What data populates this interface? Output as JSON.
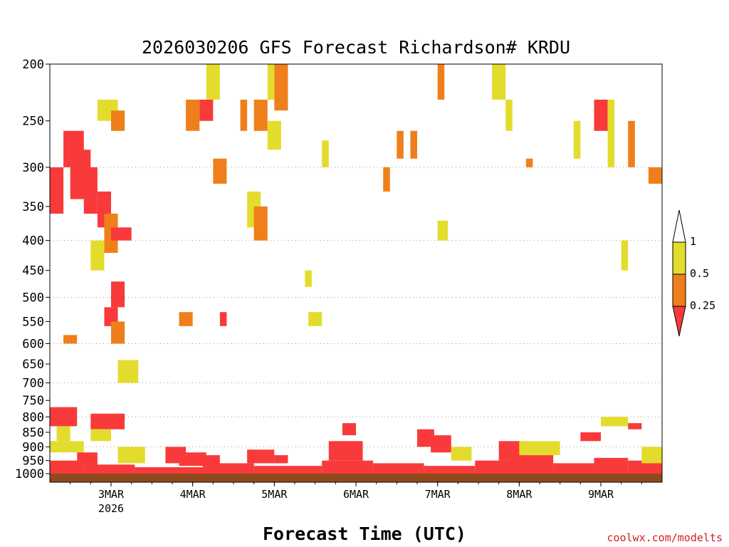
{
  "chart_data": {
    "type": "heatmap",
    "title": "2026030206 GFS Forecast Richardson# KRDU",
    "xlabel": "Forecast Time (UTC)",
    "credit": "coolwx.com/modelts",
    "y_axis": {
      "scale": "log",
      "range": [
        1000,
        200
      ],
      "ticks": [
        "200",
        "250",
        "300",
        "350",
        "400",
        "450",
        "500",
        "550",
        "600",
        "650",
        "700",
        "750",
        "800",
        "850",
        "900",
        "950",
        "1000"
      ],
      "gridlines": [
        300,
        400,
        500,
        600,
        700,
        800,
        900
      ]
    },
    "x_axis": {
      "range_hours": [
        0,
        180
      ],
      "ticks": [
        {
          "label": "3MAR",
          "sub": "2026",
          "hour": 18
        },
        {
          "label": "4MAR",
          "sub": "",
          "hour": 42
        },
        {
          "label": "5MAR",
          "sub": "",
          "hour": 66
        },
        {
          "label": "6MAR",
          "sub": "",
          "hour": 90
        },
        {
          "label": "7MAR",
          "sub": "",
          "hour": 114
        },
        {
          "label": "8MAR",
          "sub": "",
          "hour": 138
        },
        {
          "label": "9MAR",
          "sub": "",
          "hour": 162
        }
      ]
    },
    "legend": {
      "placement": "right",
      "labels": [
        "1",
        "0.5",
        "0.25"
      ],
      "colors": {
        "yellow": "#e3dc2d",
        "orange": "#ef7f1a",
        "red": "#f83a3a",
        "ground": "#8e4a1d"
      }
    },
    "categories_meaning": [
      "Ri < 0.25 (red)",
      "0.25-0.5 (orange)",
      "0.5-1 (yellow)"
    ],
    "cells": [
      [
        0,
        10,
        950,
        1000,
        "r"
      ],
      [
        10,
        25,
        965,
        1000,
        "r"
      ],
      [
        25,
        45,
        975,
        1000,
        "r"
      ],
      [
        45,
        60,
        960,
        1000,
        "r"
      ],
      [
        60,
        80,
        970,
        1000,
        "r"
      ],
      [
        80,
        95,
        950,
        1000,
        "r"
      ],
      [
        95,
        110,
        960,
        1000,
        "r"
      ],
      [
        110,
        125,
        970,
        1000,
        "r"
      ],
      [
        125,
        135,
        950,
        1000,
        "r"
      ],
      [
        135,
        148,
        930,
        1000,
        "r"
      ],
      [
        148,
        160,
        960,
        1000,
        "r"
      ],
      [
        160,
        170,
        940,
        1000,
        "r"
      ],
      [
        170,
        180,
        950,
        1000,
        "r"
      ],
      [
        0,
        8,
        770,
        830,
        "r"
      ],
      [
        2,
        6,
        830,
        880,
        "y"
      ],
      [
        12,
        22,
        790,
        840,
        "r"
      ],
      [
        12,
        18,
        840,
        880,
        "y"
      ],
      [
        0,
        10,
        880,
        920,
        "y"
      ],
      [
        8,
        14,
        920,
        980,
        "r"
      ],
      [
        20,
        28,
        900,
        960,
        "y"
      ],
      [
        34,
        40,
        900,
        960,
        "r"
      ],
      [
        38,
        46,
        920,
        970,
        "r"
      ],
      [
        44,
        50,
        930,
        970,
        "r"
      ],
      [
        58,
        66,
        910,
        960,
        "r"
      ],
      [
        66,
        70,
        930,
        960,
        "r"
      ],
      [
        82,
        92,
        880,
        950,
        "r"
      ],
      [
        86,
        90,
        820,
        860,
        "r"
      ],
      [
        108,
        113,
        840,
        900,
        "r"
      ],
      [
        112,
        118,
        860,
        920,
        "r"
      ],
      [
        118,
        124,
        900,
        950,
        "y"
      ],
      [
        132,
        140,
        880,
        950,
        "r"
      ],
      [
        138,
        150,
        880,
        930,
        "y"
      ],
      [
        156,
        162,
        850,
        880,
        "r"
      ],
      [
        162,
        170,
        800,
        830,
        "y"
      ],
      [
        174,
        180,
        900,
        960,
        "y"
      ],
      [
        170,
        174,
        820,
        840,
        "r"
      ],
      [
        0,
        4,
        300,
        360,
        "r"
      ],
      [
        4,
        10,
        260,
        300,
        "r"
      ],
      [
        6,
        12,
        280,
        340,
        "r"
      ],
      [
        10,
        14,
        300,
        360,
        "r"
      ],
      [
        14,
        18,
        330,
        380,
        "r"
      ],
      [
        16,
        20,
        360,
        420,
        "o"
      ],
      [
        18,
        24,
        380,
        400,
        "r"
      ],
      [
        14,
        20,
        230,
        250,
        "y"
      ],
      [
        18,
        22,
        240,
        260,
        "o"
      ],
      [
        12,
        16,
        400,
        450,
        "y"
      ],
      [
        18,
        22,
        470,
        520,
        "r"
      ],
      [
        16,
        20,
        520,
        560,
        "r"
      ],
      [
        18,
        22,
        550,
        600,
        "o"
      ],
      [
        4,
        8,
        580,
        600,
        "o"
      ],
      [
        20,
        26,
        640,
        700,
        "y"
      ],
      [
        40,
        44,
        230,
        260,
        "o"
      ],
      [
        44,
        48,
        230,
        250,
        "r"
      ],
      [
        46,
        50,
        200,
        230,
        "y"
      ],
      [
        48,
        52,
        290,
        320,
        "o"
      ],
      [
        56,
        58,
        230,
        260,
        "o"
      ],
      [
        60,
        64,
        230,
        260,
        "o"
      ],
      [
        64,
        66,
        200,
        230,
        "y"
      ],
      [
        66,
        70,
        200,
        240,
        "o"
      ],
      [
        64,
        68,
        250,
        280,
        "y"
      ],
      [
        58,
        62,
        330,
        380,
        "y"
      ],
      [
        60,
        64,
        350,
        400,
        "o"
      ],
      [
        80,
        82,
        270,
        300,
        "y"
      ],
      [
        102,
        104,
        260,
        290,
        "o"
      ],
      [
        106,
        108,
        260,
        290,
        "o"
      ],
      [
        98,
        100,
        300,
        330,
        "o"
      ],
      [
        114,
        116,
        200,
        230,
        "o"
      ],
      [
        114,
        117,
        370,
        400,
        "y"
      ],
      [
        130,
        134,
        200,
        230,
        "y"
      ],
      [
        134,
        136,
        230,
        260,
        "y"
      ],
      [
        140,
        142,
        290,
        300,
        "o"
      ],
      [
        154,
        156,
        250,
        290,
        "y"
      ],
      [
        160,
        164,
        230,
        260,
        "r"
      ],
      [
        164,
        166,
        230,
        300,
        "y"
      ],
      [
        170,
        172,
        250,
        300,
        "o"
      ],
      [
        176,
        180,
        300,
        320,
        "o"
      ],
      [
        168,
        170,
        400,
        450,
        "y"
      ],
      [
        75,
        77,
        450,
        480,
        "y"
      ],
      [
        76,
        80,
        530,
        560,
        "y"
      ],
      [
        38,
        42,
        530,
        560,
        "o"
      ],
      [
        50,
        52,
        530,
        560,
        "r"
      ]
    ]
  }
}
